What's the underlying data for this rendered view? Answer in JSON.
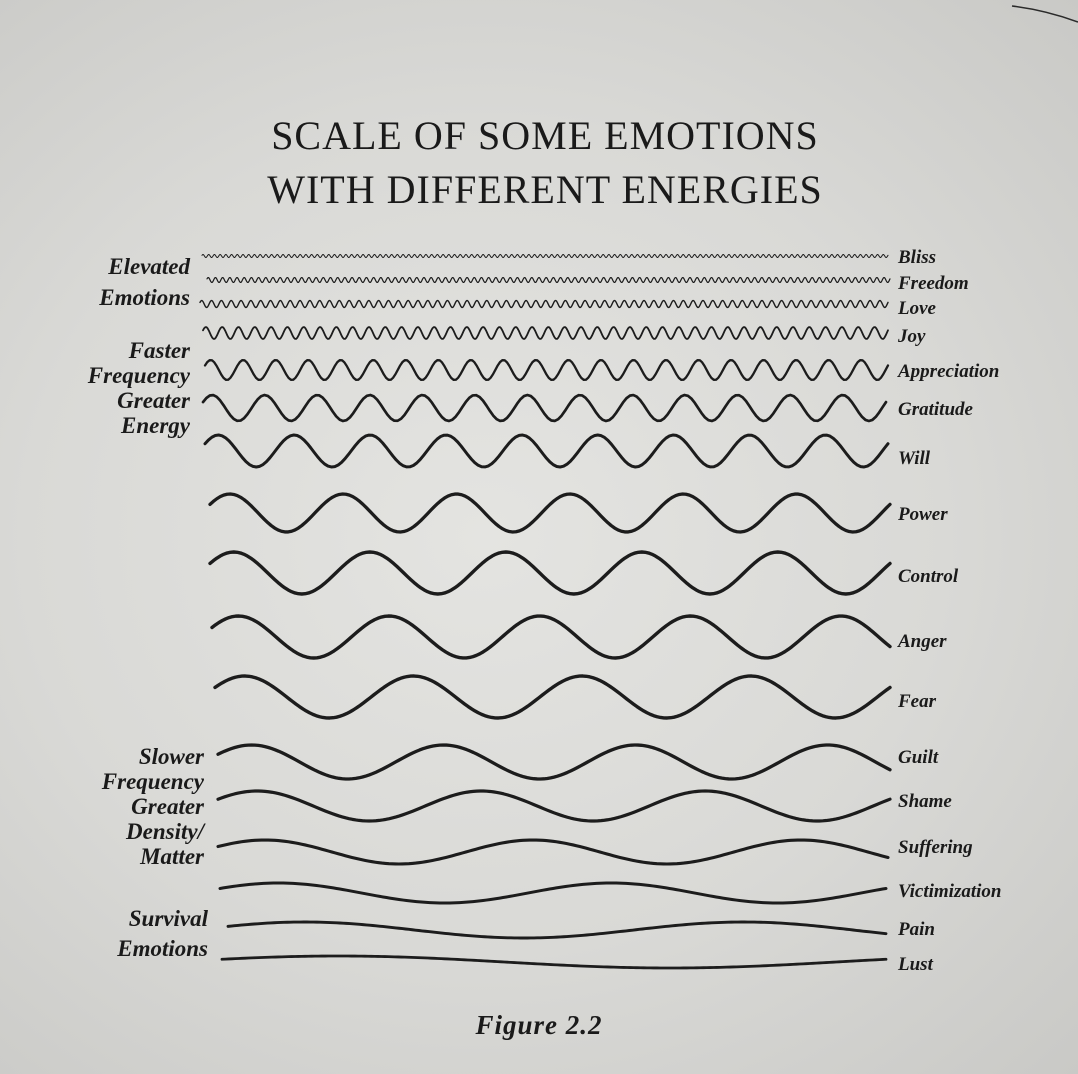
{
  "title": {
    "line1": "SCALE OF SOME EMOTIONS",
    "line2": "WITH DIFFERENT ENERGIES"
  },
  "left_labels": {
    "elevated": [
      "Elevated",
      "Emotions"
    ],
    "faster": [
      "Faster",
      "Frequency",
      "Greater",
      "Energy"
    ],
    "slower": [
      "Slower",
      "Frequency",
      "Greater",
      "Density/",
      "Matter"
    ],
    "survival": [
      "Survival",
      "Emotions"
    ]
  },
  "emotions": [
    {
      "label": "Bliss",
      "cycles": 120,
      "amplitude": 1.5
    },
    {
      "label": "Freedom",
      "cycles": 95,
      "amplitude": 2.5
    },
    {
      "label": "Love",
      "cycles": 70,
      "amplitude": 3.5
    },
    {
      "label": "Joy",
      "cycles": 42,
      "amplitude": 6
    },
    {
      "label": "Appreciation",
      "cycles": 21,
      "amplitude": 10
    },
    {
      "label": "Gratitude",
      "cycles": 13,
      "amplitude": 13
    },
    {
      "label": "Will",
      "cycles": 9,
      "amplitude": 16
    },
    {
      "label": "Power",
      "cycles": 6,
      "amplitude": 19
    },
    {
      "label": "Control",
      "cycles": 5,
      "amplitude": 21
    },
    {
      "label": "Anger",
      "cycles": 4.5,
      "amplitude": 21
    },
    {
      "label": "Fear",
      "cycles": 4,
      "amplitude": 21
    },
    {
      "label": "Guilt",
      "cycles": 3.5,
      "amplitude": 17
    },
    {
      "label": "Shame",
      "cycles": 3,
      "amplitude": 15
    },
    {
      "label": "Suffering",
      "cycles": 2.5,
      "amplitude": 12
    },
    {
      "label": "Victimization",
      "cycles": 2,
      "amplitude": 10
    },
    {
      "label": "Pain",
      "cycles": 1.5,
      "amplitude": 8
    },
    {
      "label": "Lust",
      "cycles": 1,
      "amplitude": 6
    }
  ],
  "caption": "Figure 2.2",
  "colors": {
    "ink": "#1c1c1c",
    "paper": "#dcdcd9"
  }
}
